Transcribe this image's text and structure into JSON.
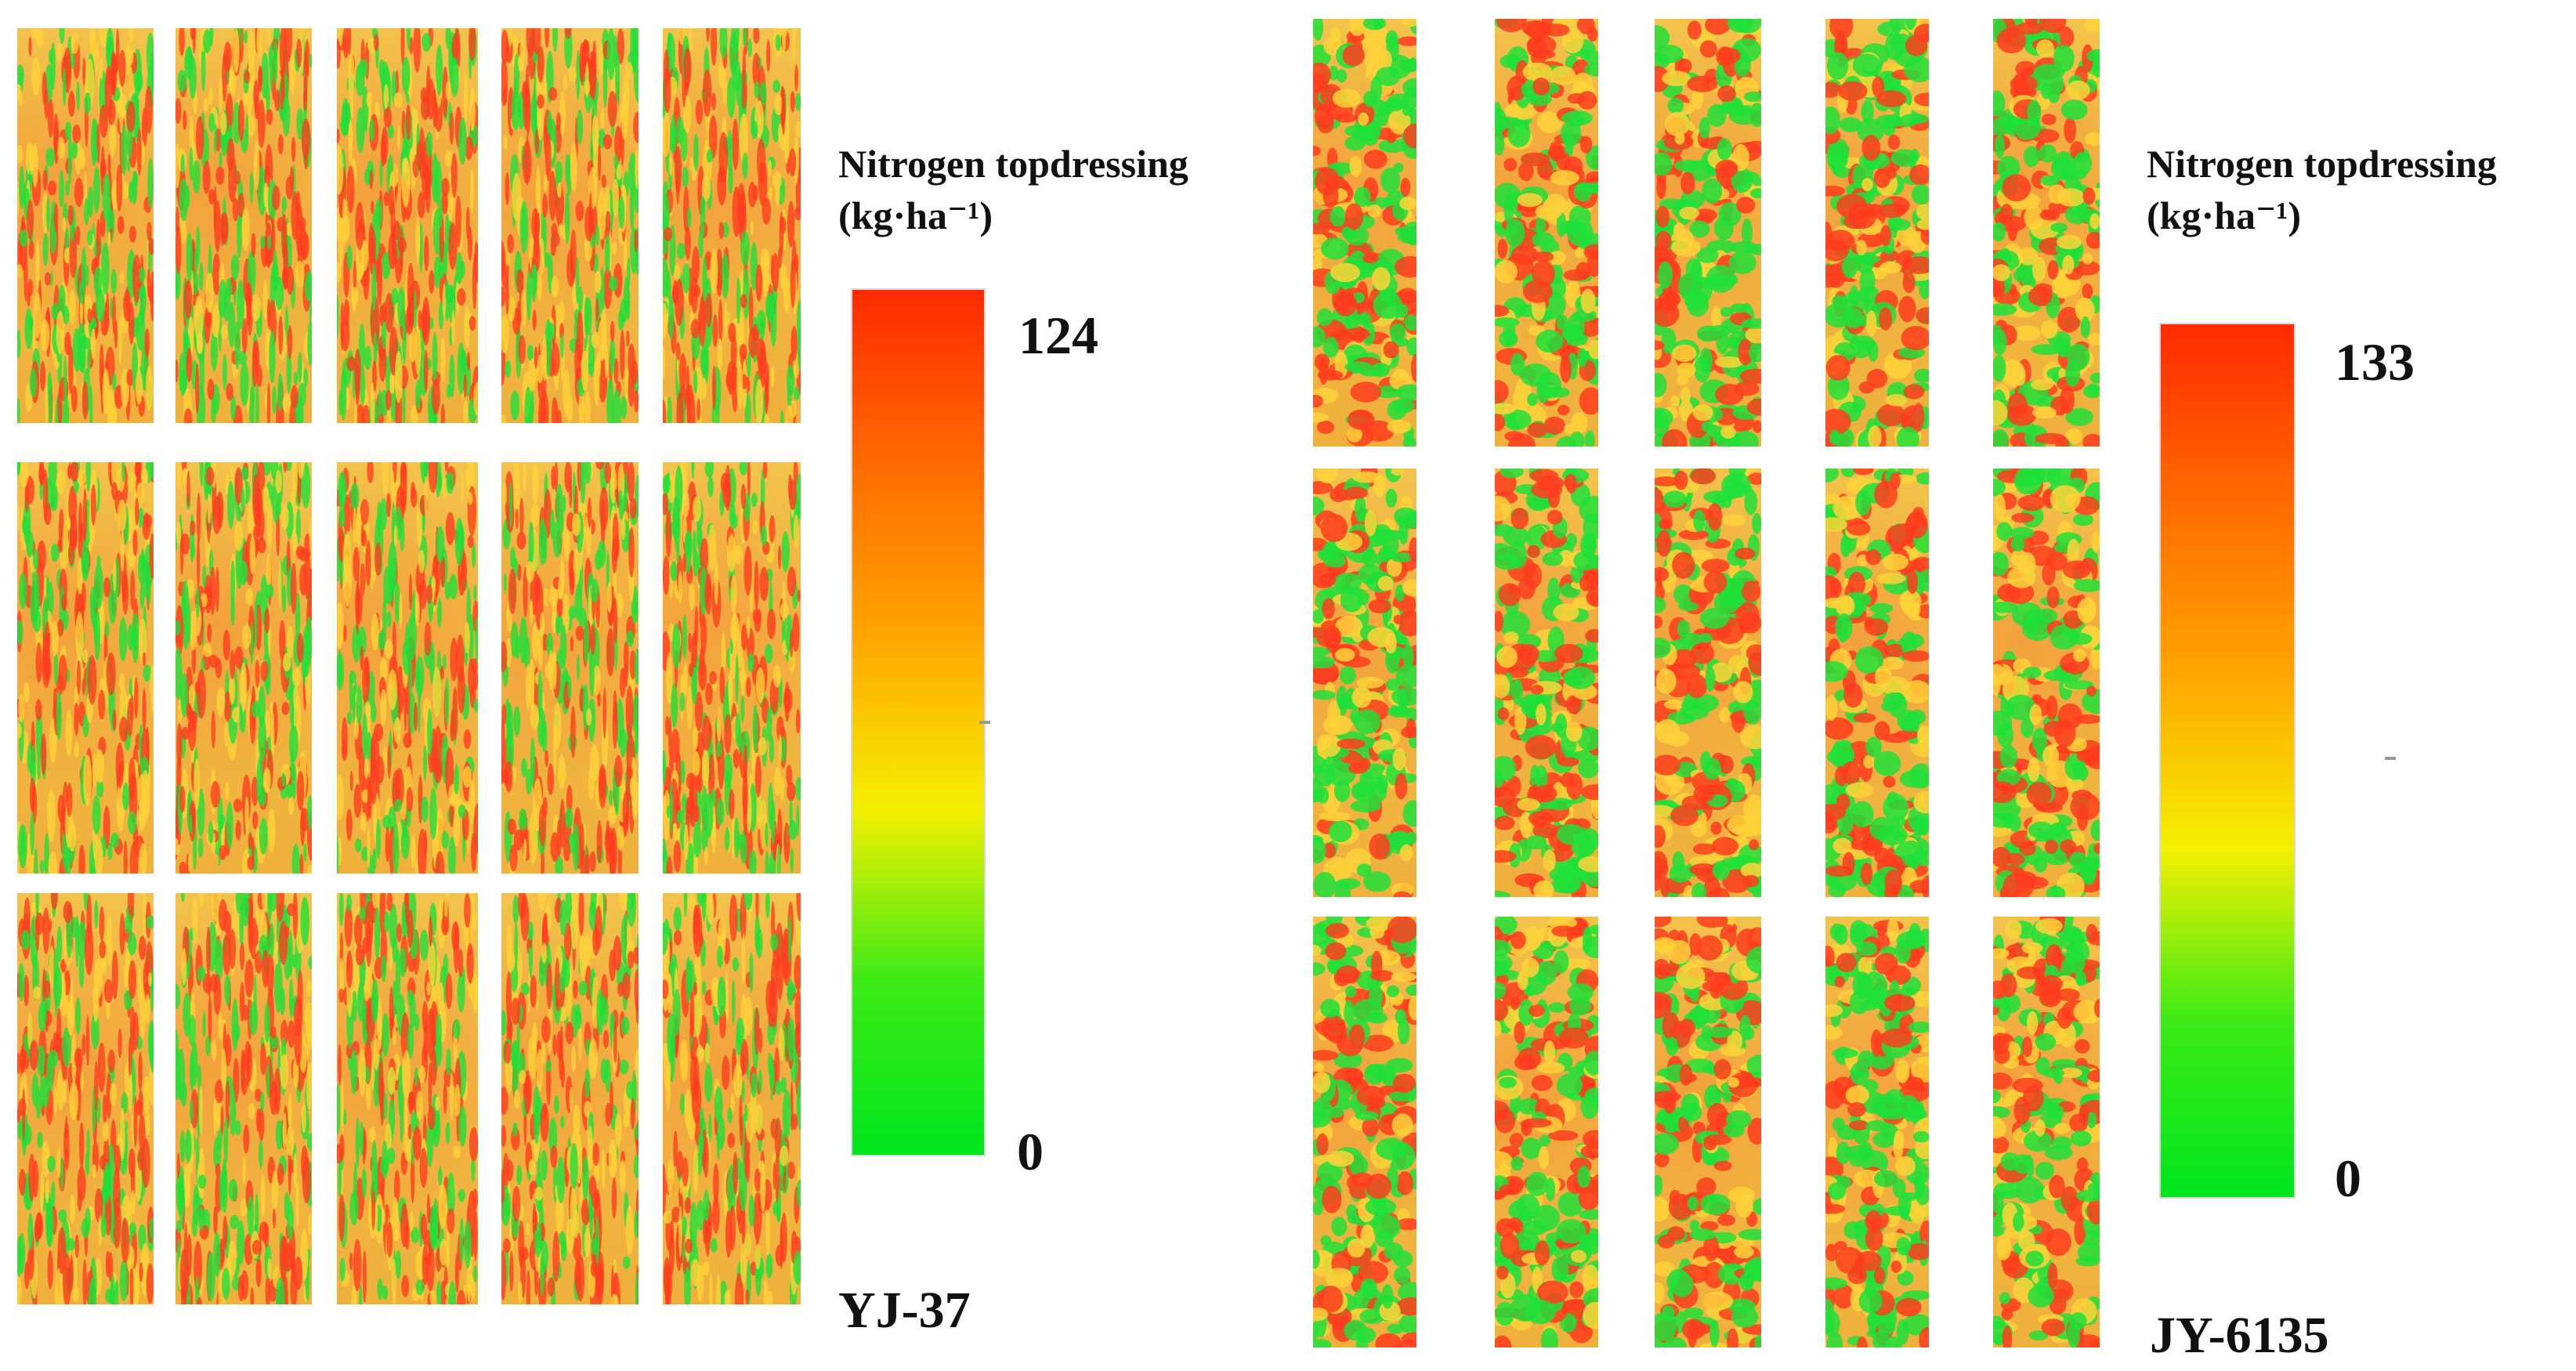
{
  "figure": {
    "panels": [
      {
        "label": "YJ-37",
        "legend_title_line1": "Nitrogen topdressing",
        "legend_title_line2": "(kg·ha⁻¹)",
        "scale_max": "124",
        "scale_min": "0",
        "grid": {
          "rows": 3,
          "cols": 5
        },
        "pattern": "vertical-streaks",
        "seed": 37
      },
      {
        "label": "JY-6135",
        "legend_title_line1": "Nitrogen topdressing",
        "legend_title_line2": "(kg·ha⁻¹)",
        "scale_max": "133",
        "scale_min": "0",
        "grid": {
          "rows": 3,
          "cols": 5
        },
        "pattern": "blobs",
        "seed": 6135
      }
    ],
    "colormap": [
      "#00e61e",
      "#3cea16",
      "#f4f000",
      "#ffa500",
      "#ff6a00",
      "#ff2a00"
    ],
    "map_colors": {
      "low": "#1fe03a",
      "mid": "#f2c24a",
      "high": "#ff3d1f"
    }
  }
}
